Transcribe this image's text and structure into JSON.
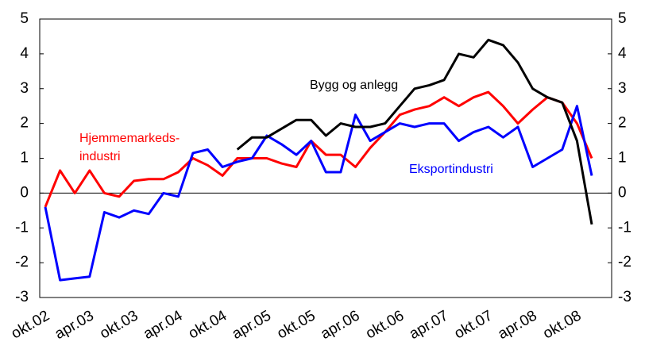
{
  "chart_data": {
    "type": "line",
    "categories": [
      "okt.02",
      null,
      null,
      "apr.03",
      null,
      null,
      "okt.03",
      null,
      null,
      "apr.04",
      null,
      null,
      "okt.04",
      null,
      null,
      "apr.05",
      null,
      null,
      "okt.05",
      null,
      null,
      "apr.06",
      null,
      null,
      "okt.06",
      null,
      null,
      "apr.07",
      null,
      null,
      "okt.07",
      null,
      null,
      "apr.08",
      null,
      null,
      "okt.08",
      null
    ],
    "series": [
      {
        "name": "Hjemmemarkedsindustri",
        "color": "#ff0000",
        "values": [
          -0.4,
          0.65,
          0,
          0.65,
          0,
          -0.1,
          0.35,
          0.4,
          0.4,
          0.6,
          1.0,
          0.8,
          0.5,
          1.0,
          1.0,
          1.0,
          0.85,
          0.75,
          1.5,
          1.1,
          1.1,
          0.75,
          1.3,
          1.75,
          2.25,
          2.4,
          2.5,
          2.75,
          2.5,
          2.75,
          2.9,
          2.5,
          2.0,
          2.4,
          2.75,
          2.6,
          2.0,
          1.0
        ]
      },
      {
        "name": "Eksportindustri",
        "color": "#0000ff",
        "values": [
          -0.4,
          -2.5,
          -2.45,
          -2.4,
          -0.55,
          -0.7,
          -0.5,
          -0.6,
          0,
          -0.1,
          1.15,
          1.25,
          0.75,
          0.9,
          1.0,
          1.65,
          1.4,
          1.1,
          1.5,
          0.6,
          0.6,
          2.25,
          1.5,
          1.75,
          2.0,
          1.9,
          2.0,
          2.0,
          1.5,
          1.75,
          1.9,
          1.6,
          1.9,
          0.75,
          1.0,
          1.25,
          2.5,
          0.5
        ]
      },
      {
        "name": "Bygg og anlegg",
        "color": "#000000",
        "values": [
          null,
          null,
          null,
          null,
          null,
          null,
          null,
          null,
          null,
          null,
          null,
          null,
          null,
          1.25,
          1.6,
          1.6,
          1.85,
          2.1,
          2.1,
          1.65,
          2.0,
          1.9,
          1.9,
          2.0,
          2.5,
          3.0,
          3.1,
          3.25,
          4.0,
          3.9,
          4.4,
          4.25,
          3.75,
          3.0,
          2.75,
          2.6,
          1.5,
          -0.9
        ]
      }
    ],
    "annotations": [
      "Bygg og anlegg",
      "Hjemmemarkeds-",
      "industri",
      "Eksportindustri"
    ],
    "ylim": [
      -3,
      5
    ],
    "yticks": [
      -3,
      -2,
      -1,
      0,
      1,
      2,
      3,
      4,
      5
    ],
    "y2lim": [
      -3,
      5
    ],
    "y2ticks": [
      -3,
      -2,
      -1,
      0,
      1,
      2,
      3,
      4,
      5
    ]
  }
}
